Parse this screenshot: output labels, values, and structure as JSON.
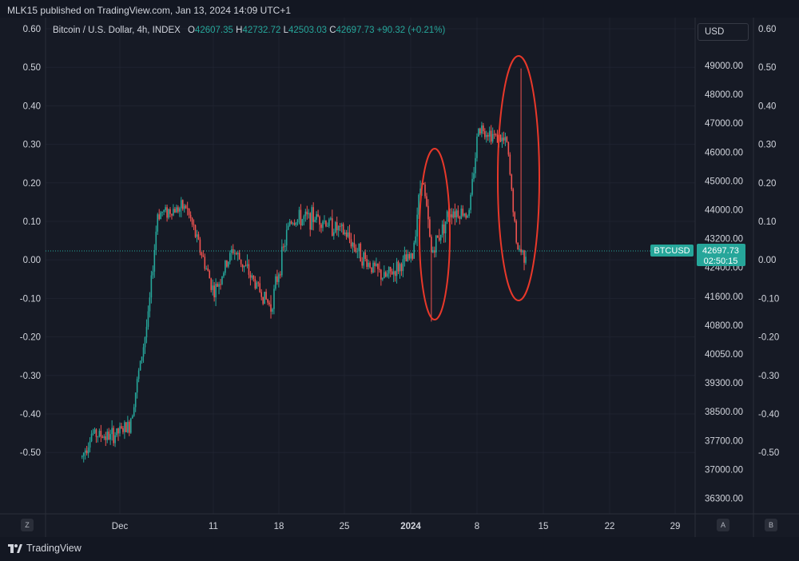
{
  "header": {
    "published_line": "MLK15 published on TradingView.com, Jan 13, 2024 14:09 UTC+1"
  },
  "legend": {
    "symbol": "Bitcoin / U.S. Dollar, 4h, INDEX",
    "o_label": "O",
    "o_value": "42607.35",
    "h_label": "H",
    "h_value": "42732.72",
    "l_label": "L",
    "l_value": "42503.03",
    "c_label": "C",
    "c_value": "42697.73",
    "change": "+90.32 (+0.21%)"
  },
  "currency_button": "USD",
  "price_badge": {
    "symbol": "BTCUSD",
    "price": "42697.73",
    "countdown": "02:50:15"
  },
  "footer": {
    "logo_text": "TradingView",
    "left_scale_button": "Z",
    "auto_button": "A",
    "right_scale_button": "B"
  },
  "colors": {
    "background": "#161a25",
    "up": "#26a69a",
    "down": "#ef5350",
    "annotation": "#e8382a",
    "badge": "#26a69a"
  },
  "chart_data": {
    "type": "candlestick",
    "symbol": "BTCUSD",
    "interval": "4h",
    "last_close": 42697.73,
    "price_axis": {
      "ticks": [
        "49000.00",
        "48000.00",
        "47000.00",
        "46000.00",
        "45000.00",
        "44000.00",
        "43200.00",
        "42400.00",
        "41600.00",
        "40800.00",
        "40050.00",
        "39300.00",
        "38500.00",
        "37700.00",
        "37000.00",
        "36300.00"
      ]
    },
    "percent_axis": {
      "ticks": [
        "0.60",
        "0.50",
        "0.40",
        "0.30",
        "0.20",
        "0.10",
        "0.00",
        "-0.10",
        "-0.20",
        "-0.30",
        "-0.40",
        "-0.50"
      ]
    },
    "time_axis": {
      "ticks": [
        "Dec",
        "11",
        "18",
        "25",
        "2024",
        "8",
        "15",
        "22",
        "29"
      ]
    },
    "grid": true,
    "approx_closes": [
      {
        "date": "Nov 27",
        "close": 37300
      },
      {
        "date": "Nov 28",
        "close": 37900
      },
      {
        "date": "Nov 30",
        "close": 37800
      },
      {
        "date": "Dec 2",
        "close": 38100
      },
      {
        "date": "Dec 4",
        "close": 41000
      },
      {
        "date": "Dec 5",
        "close": 43900
      },
      {
        "date": "Dec 8",
        "close": 44100
      },
      {
        "date": "Dec 11",
        "close": 41700
      },
      {
        "date": "Dec 13",
        "close": 42900
      },
      {
        "date": "Dec 15",
        "close": 42100
      },
      {
        "date": "Dec 17",
        "close": 41300
      },
      {
        "date": "Dec 19",
        "close": 43700
      },
      {
        "date": "Dec 22",
        "close": 43800
      },
      {
        "date": "Dec 25",
        "close": 43300
      },
      {
        "date": "Dec 27",
        "close": 42600
      },
      {
        "date": "Dec 29",
        "close": 42100
      },
      {
        "date": "Jan 1",
        "close": 42700
      },
      {
        "date": "Jan 2",
        "close": 45200
      },
      {
        "date": "Jan 3",
        "close": 42800
      },
      {
        "date": "Jan 5",
        "close": 44000
      },
      {
        "date": "Jan 7",
        "close": 43900
      },
      {
        "date": "Jan 8",
        "close": 46900
      },
      {
        "date": "Jan 10",
        "close": 46500
      },
      {
        "date": "Jan 11",
        "close": 46300
      },
      {
        "date": "Jan 12",
        "close": 43000
      },
      {
        "date": "Jan 13",
        "close": 42697.73
      }
    ]
  }
}
